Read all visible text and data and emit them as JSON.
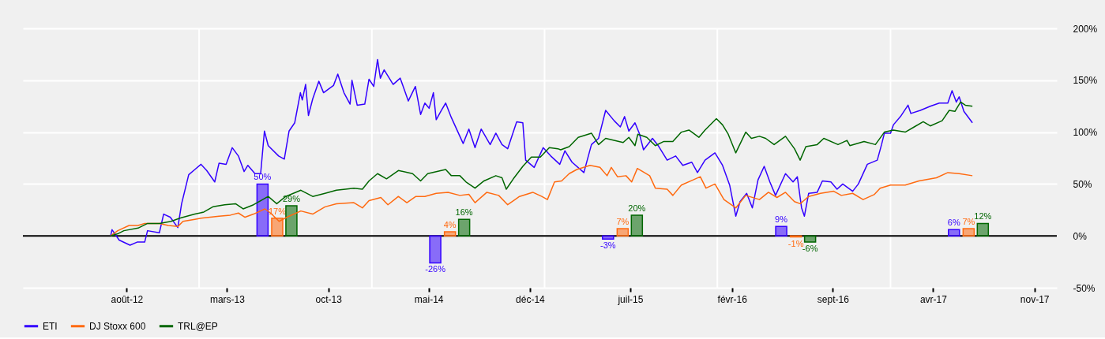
{
  "chart_data": {
    "type": "line",
    "xlim": [
      "2012-01-03",
      "2017-12-10"
    ],
    "xticks": [
      {
        "value": "2012-08-01",
        "label": "août-12"
      },
      {
        "value": "2013-03-01",
        "label": "mars-13"
      },
      {
        "value": "2013-10-01",
        "label": "oct-13"
      },
      {
        "value": "2014-05-01",
        "label": "mai-14"
      },
      {
        "value": "2014-12-01",
        "label": "déc-14"
      },
      {
        "value": "2015-07-01",
        "label": "juil-15"
      },
      {
        "value": "2016-02-01",
        "label": "févr-16"
      },
      {
        "value": "2016-09-01",
        "label": "sept-16"
      },
      {
        "value": "2017-04-01",
        "label": "avr-17"
      },
      {
        "value": "2017-11-01",
        "label": "nov-17"
      }
    ],
    "ylim": [
      -50,
      200
    ],
    "yticks": [
      {
        "value": -50,
        "label": "-50%"
      },
      {
        "value": 0,
        "label": "0%"
      },
      {
        "value": 50,
        "label": "50%"
      },
      {
        "value": 100,
        "label": "100%"
      },
      {
        "value": 150,
        "label": "150%"
      },
      {
        "value": 200,
        "label": "200%"
      }
    ],
    "grid": "y",
    "legend": "bottom",
    "marker": "none",
    "ref_lines": [
      {
        "axis": "x",
        "value": "2013-01-01",
        "color": "#ffffff"
      },
      {
        "axis": "x",
        "value": "2014-01-01",
        "color": "#ffffff"
      },
      {
        "axis": "x",
        "value": "2015-01-01",
        "color": "#ffffff"
      },
      {
        "axis": "x",
        "value": "2016-01-01",
        "color": "#ffffff"
      },
      {
        "axis": "x",
        "value": "2017-01-01",
        "color": "#ffffff"
      },
      {
        "axis": "y",
        "value": 0,
        "color": "#000000"
      }
    ],
    "series": [
      {
        "type": "bar",
        "color": "#3300ff",
        "x": [
          "2013-05-15",
          "2014-05-15",
          "2015-05-15",
          "2016-05-15",
          "2017-05-15"
        ],
        "values": [
          50,
          -26,
          -3,
          9,
          6
        ],
        "value_labels": [
          "50%",
          "-26%",
          "-3%",
          "9%",
          "6%"
        ]
      },
      {
        "type": "bar",
        "color": "#ff6a10",
        "x": [
          "2013-06-15",
          "2014-06-15",
          "2015-06-15",
          "2016-06-15",
          "2017-06-15"
        ],
        "values": [
          17,
          4,
          7,
          -1,
          7
        ],
        "value_labels": [
          "17%",
          "4%",
          "7%",
          "-1%",
          "7%"
        ]
      },
      {
        "type": "bar",
        "color": "#006600",
        "x": [
          "2013-07-15",
          "2014-07-15",
          "2015-07-15",
          "2016-07-15",
          "2017-07-15"
        ],
        "values": [
          29,
          16,
          20,
          -6,
          12
        ],
        "value_labels": [
          "29%",
          "16%",
          "20%",
          "-6%",
          "12%"
        ]
      },
      {
        "name": "ETI",
        "color": "#3300ff",
        "x": [
          "2012-06-28",
          "2012-07-01",
          "2012-07-16",
          "2012-08-08",
          "2012-08-23",
          "2012-09-08",
          "2012-09-14",
          "2012-10-09",
          "2012-10-18",
          "2012-11-01",
          "2012-11-17",
          "2012-11-25",
          "2012-12-10",
          "2012-12-23",
          "2013-01-05",
          "2013-01-17",
          "2013-02-03",
          "2013-02-12",
          "2013-02-27",
          "2013-03-12",
          "2013-03-25",
          "2013-04-06",
          "2013-04-14",
          "2013-04-29",
          "2013-05-11",
          "2013-05-19",
          "2013-05-27",
          "2013-06-18",
          "2013-06-30",
          "2013-07-10",
          "2013-07-22",
          "2013-08-03",
          "2013-08-07",
          "2013-08-14",
          "2013-08-20",
          "2013-08-29",
          "2013-09-11",
          "2013-09-21",
          "2013-09-30",
          "2013-10-12",
          "2013-10-21",
          "2013-11-03",
          "2013-11-16",
          "2013-11-20",
          "2013-12-01",
          "2013-12-17",
          "2013-12-26",
          "2014-01-05",
          "2014-01-13",
          "2014-01-19",
          "2014-01-27",
          "2014-02-15",
          "2014-03-02",
          "2014-03-19",
          "2014-04-03",
          "2014-04-14",
          "2014-04-23",
          "2014-05-02",
          "2014-05-11",
          "2014-05-17",
          "2014-05-28",
          "2014-06-06",
          "2014-06-18",
          "2014-07-13",
          "2014-07-25",
          "2014-08-07",
          "2014-08-20",
          "2014-09-08",
          "2014-09-20",
          "2014-10-03",
          "2014-10-15",
          "2014-11-03",
          "2014-11-16",
          "2014-11-22",
          "2014-12-10",
          "2014-12-29",
          "2015-01-14",
          "2015-02-02",
          "2015-02-13",
          "2015-02-28",
          "2015-03-25",
          "2015-04-10",
          "2015-04-25",
          "2015-05-10",
          "2015-05-28",
          "2015-06-10",
          "2015-06-19",
          "2015-06-28",
          "2015-07-11",
          "2015-07-20",
          "2015-07-29",
          "2015-08-17",
          "2015-08-29",
          "2015-09-17",
          "2015-10-05",
          "2015-10-20",
          "2015-11-08",
          "2015-11-20",
          "2015-12-06",
          "2015-12-27",
          "2016-01-12",
          "2016-01-27",
          "2016-02-09",
          "2016-02-18",
          "2016-03-03",
          "2016-03-15",
          "2016-03-27",
          "2016-04-09",
          "2016-04-21",
          "2016-05-03",
          "2016-05-24",
          "2016-06-09",
          "2016-06-18",
          "2016-06-27",
          "2016-07-03",
          "2016-07-12",
          "2016-07-30",
          "2016-08-10",
          "2016-08-28",
          "2016-09-10",
          "2016-09-22",
          "2016-10-13",
          "2016-10-25",
          "2016-11-13",
          "2016-12-04",
          "2016-12-13",
          "2016-12-19",
          "2017-01-01",
          "2017-01-07",
          "2017-01-22",
          "2017-02-07",
          "2017-02-13",
          "2017-03-05",
          "2017-03-26",
          "2017-04-14",
          "2017-05-02",
          "2017-05-11",
          "2017-05-20",
          "2017-05-26",
          "2017-06-05",
          "2017-06-23"
        ],
        "values": [
          0,
          6,
          -4,
          -9,
          -6,
          -6,
          5,
          3,
          21,
          18,
          8,
          31,
          59,
          64,
          69,
          63,
          52,
          70,
          69,
          85,
          77,
          62,
          68,
          60,
          60,
          101,
          87,
          77,
          74,
          101,
          109,
          138,
          131,
          146,
          116,
          132,
          149,
          138,
          141,
          145,
          156,
          138,
          127,
          150,
          126,
          127,
          151,
          144,
          170,
          152,
          160,
          146,
          152,
          130,
          144,
          117,
          128,
          123,
          138,
          112,
          121,
          128,
          114,
          89,
          103,
          85,
          103,
          88,
          99,
          88,
          84,
          110,
          109,
          73,
          66,
          85,
          77,
          69,
          82,
          71,
          61,
          88,
          94,
          121,
          111,
          105,
          115,
          101,
          109,
          99,
          83,
          94,
          87,
          73,
          77,
          68,
          71,
          61,
          73,
          80,
          68,
          49,
          19,
          33,
          41,
          27,
          54,
          67,
          52,
          39,
          60,
          52,
          57,
          27,
          19,
          41,
          42,
          53,
          52,
          45,
          50,
          43,
          50,
          69,
          73,
          88,
          99,
          99,
          107,
          115,
          126,
          118,
          121,
          125,
          128,
          128,
          140,
          129,
          134,
          120,
          109
        ]
      },
      {
        "name": "DJ Stoxx 600",
        "color": "#ff6a10",
        "x": [
          "2012-06-28",
          "2012-07-13",
          "2012-08-06",
          "2012-08-25",
          "2012-09-08",
          "2012-10-09",
          "2012-10-28",
          "2012-11-17",
          "2012-11-28",
          "2012-12-23",
          "2013-01-05",
          "2013-02-12",
          "2013-03-08",
          "2013-03-25",
          "2013-04-08",
          "2013-04-26",
          "2013-05-20",
          "2013-06-01",
          "2013-06-19",
          "2013-07-10",
          "2013-08-04",
          "2013-08-29",
          "2013-09-24",
          "2013-10-18",
          "2013-11-24",
          "2013-12-12",
          "2013-12-26",
          "2014-01-20",
          "2014-02-04",
          "2014-02-26",
          "2014-03-16",
          "2014-04-04",
          "2014-04-23",
          "2014-05-17",
          "2014-06-11",
          "2014-07-06",
          "2014-07-25",
          "2014-08-07",
          "2014-09-01",
          "2014-09-26",
          "2014-10-15",
          "2014-11-09",
          "2014-12-07",
          "2014-12-26",
          "2015-01-07",
          "2015-01-22",
          "2015-02-06",
          "2015-02-22",
          "2015-03-10",
          "2015-04-07",
          "2015-04-28",
          "2015-05-13",
          "2015-05-22",
          "2015-06-04",
          "2015-06-22",
          "2015-07-04",
          "2015-07-16",
          "2015-08-11",
          "2015-08-23",
          "2015-09-17",
          "2015-09-29",
          "2015-10-17",
          "2015-11-11",
          "2015-11-26",
          "2015-12-08",
          "2015-12-27",
          "2016-01-15",
          "2016-02-09",
          "2016-03-01",
          "2016-03-30",
          "2016-04-18",
          "2016-05-06",
          "2016-05-24",
          "2016-06-12",
          "2016-06-24",
          "2016-07-12",
          "2016-08-06",
          "2016-09-03",
          "2016-09-19",
          "2016-10-13",
          "2016-11-04",
          "2016-11-28",
          "2016-12-10",
          "2017-01-01",
          "2017-02-01",
          "2017-03-02",
          "2017-04-08",
          "2017-05-02",
          "2017-05-26",
          "2017-06-23"
        ],
        "values": [
          0,
          5,
          10,
          10,
          12,
          12,
          10,
          9,
          14,
          16,
          17,
          19,
          20,
          22,
          18,
          21,
          26,
          22,
          14,
          19,
          24,
          21,
          28,
          31,
          32,
          27,
          34,
          37,
          30,
          38,
          32,
          38,
          38,
          41,
          42,
          39,
          40,
          32,
          42,
          39,
          30,
          38,
          42,
          38,
          35,
          52,
          53,
          60,
          64,
          68,
          66,
          58,
          66,
          57,
          58,
          52,
          65,
          58,
          46,
          45,
          39,
          49,
          54,
          57,
          46,
          50,
          35,
          27,
          39,
          35,
          42,
          37,
          42,
          33,
          31,
          38,
          41,
          43,
          39,
          41,
          35,
          40,
          46,
          49,
          49,
          53,
          56,
          61,
          60,
          58
        ]
      },
      {
        "name": "TRL@EP",
        "color": "#006600",
        "x": [
          "2012-06-28",
          "2012-07-13",
          "2012-07-26",
          "2012-08-25",
          "2012-09-14",
          "2012-10-09",
          "2012-11-03",
          "2012-11-21",
          "2012-12-23",
          "2013-01-11",
          "2013-01-30",
          "2013-02-24",
          "2013-03-19",
          "2013-04-04",
          "2013-04-26",
          "2013-05-27",
          "2013-06-14",
          "2013-07-03",
          "2013-08-04",
          "2013-08-29",
          "2013-09-24",
          "2013-10-18",
          "2013-11-06",
          "2013-11-24",
          "2013-12-12",
          "2013-12-26",
          "2014-01-13",
          "2014-02-01",
          "2014-02-26",
          "2014-03-28",
          "2014-04-14",
          "2014-04-29",
          "2014-06-06",
          "2014-06-18",
          "2014-07-06",
          "2014-07-19",
          "2014-08-07",
          "2014-08-26",
          "2014-09-20",
          "2014-10-03",
          "2014-10-12",
          "2014-10-27",
          "2014-11-16",
          "2014-12-04",
          "2014-12-23",
          "2015-01-11",
          "2015-01-29",
          "2015-02-04",
          "2015-02-22",
          "2015-03-13",
          "2015-04-10",
          "2015-04-25",
          "2015-05-10",
          "2015-06-16",
          "2015-06-28",
          "2015-07-11",
          "2015-07-17",
          "2015-08-05",
          "2015-08-23",
          "2015-09-10",
          "2015-09-29",
          "2015-10-17",
          "2015-11-02",
          "2015-11-23",
          "2015-12-06",
          "2015-12-30",
          "2016-01-12",
          "2016-01-24",
          "2016-02-09",
          "2016-03-01",
          "2016-03-13",
          "2016-03-30",
          "2016-04-12",
          "2016-04-30",
          "2016-05-24",
          "2016-06-12",
          "2016-06-24",
          "2016-07-06",
          "2016-07-30",
          "2016-08-13",
          "2016-09-12",
          "2016-10-01",
          "2016-10-07",
          "2016-11-06",
          "2016-11-30",
          "2016-12-19",
          "2017-01-07",
          "2017-02-01",
          "2017-02-20",
          "2017-03-11",
          "2017-03-26",
          "2017-04-20",
          "2017-05-05",
          "2017-05-17",
          "2017-05-29",
          "2017-06-08",
          "2017-06-23"
        ],
        "values": [
          0,
          2,
          5,
          7.5,
          12,
          12,
          14,
          17,
          21,
          23,
          28,
          30,
          31,
          26,
          30,
          38,
          31,
          38,
          44,
          38,
          41,
          44,
          45,
          46,
          45,
          53,
          60,
          55,
          63,
          60,
          53,
          60,
          64,
          58,
          58,
          52,
          46,
          53,
          58,
          56,
          45,
          55,
          67,
          76,
          76,
          85,
          84,
          83,
          86,
          95,
          99,
          88,
          94,
          90,
          95,
          87,
          98,
          95,
          87,
          91,
          91,
          100,
          102,
          95,
          102,
          113,
          107,
          98,
          80,
          100,
          94,
          96,
          94,
          88,
          96,
          84,
          73,
          86,
          88,
          94,
          88,
          92,
          87,
          91,
          88,
          100,
          102,
          100,
          105,
          110,
          106,
          111,
          121,
          120,
          129,
          126,
          125
        ]
      }
    ]
  }
}
